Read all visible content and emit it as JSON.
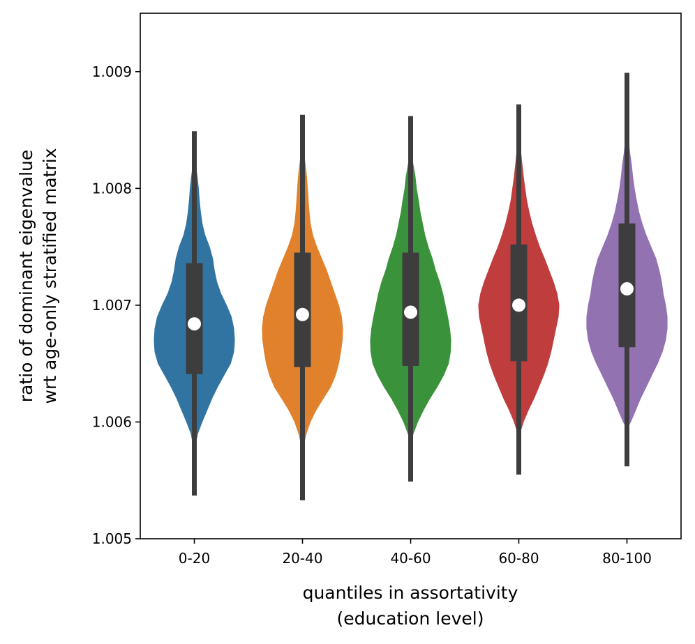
{
  "chart_data": {
    "type": "violin",
    "xlabel_line1": "quantiles in assortativity",
    "xlabel_line2": "(education level)",
    "ylabel_line1": "ratio of dominant eigenvalue",
    "ylabel_line2": "wrt age-only stratified matrix",
    "ylim": [
      1.005,
      1.0095
    ],
    "yticks": [
      "1.005",
      "1.006",
      "1.007",
      "1.008",
      "1.009"
    ],
    "categories": [
      "0-20",
      "20-40",
      "40-60",
      "60-80",
      "80-100"
    ],
    "series": [
      {
        "color": "#3274a1",
        "median": 1.00684,
        "q1": 1.00641,
        "q3": 1.00736,
        "whisker_low": 1.00537,
        "whisker_high": 1.00849,
        "kde_min": 1.00578,
        "kde_max": 1.00823,
        "density": [
          [
            1.00578,
            0.02
          ],
          [
            1.0059,
            0.09
          ],
          [
            1.006,
            0.2
          ],
          [
            1.0061,
            0.32
          ],
          [
            1.0062,
            0.44
          ],
          [
            1.0063,
            0.58
          ],
          [
            1.0064,
            0.74
          ],
          [
            1.0065,
            0.9
          ],
          [
            1.0066,
            0.98
          ],
          [
            1.0067,
            1.0
          ],
          [
            1.0068,
            0.98
          ],
          [
            1.0069,
            0.92
          ],
          [
            1.007,
            0.8
          ],
          [
            1.0071,
            0.66
          ],
          [
            1.0072,
            0.56
          ],
          [
            1.0073,
            0.5
          ],
          [
            1.0074,
            0.46
          ],
          [
            1.0075,
            0.38
          ],
          [
            1.0076,
            0.27
          ],
          [
            1.0077,
            0.2
          ],
          [
            1.0078,
            0.16
          ],
          [
            1.0079,
            0.13
          ],
          [
            1.008,
            0.11
          ],
          [
            1.0081,
            0.08
          ],
          [
            1.0082,
            0.04
          ],
          [
            1.00823,
            0.01
          ]
        ]
      },
      {
        "color": "#e1812c",
        "median": 1.00692,
        "q1": 1.00647,
        "q3": 1.00745,
        "whisker_low": 1.00533,
        "whisker_high": 1.00863,
        "kde_min": 1.00578,
        "kde_max": 1.00842,
        "density": [
          [
            1.00578,
            0.02
          ],
          [
            1.0059,
            0.1
          ],
          [
            1.006,
            0.2
          ],
          [
            1.0061,
            0.34
          ],
          [
            1.0062,
            0.52
          ],
          [
            1.0063,
            0.7
          ],
          [
            1.0064,
            0.82
          ],
          [
            1.0065,
            0.9
          ],
          [
            1.0066,
            0.95
          ],
          [
            1.0067,
            0.99
          ],
          [
            1.0068,
            1.0
          ],
          [
            1.0069,
            0.97
          ],
          [
            1.007,
            0.9
          ],
          [
            1.0071,
            0.8
          ],
          [
            1.0072,
            0.7
          ],
          [
            1.0073,
            0.6
          ],
          [
            1.0074,
            0.48
          ],
          [
            1.0075,
            0.36
          ],
          [
            1.0076,
            0.26
          ],
          [
            1.0077,
            0.2
          ],
          [
            1.0078,
            0.17
          ],
          [
            1.0079,
            0.15
          ],
          [
            1.008,
            0.13
          ],
          [
            1.0081,
            0.11
          ],
          [
            1.0082,
            0.08
          ],
          [
            1.0083,
            0.04
          ],
          [
            1.00842,
            0.01
          ]
        ]
      },
      {
        "color": "#3a923a",
        "median": 1.00694,
        "q1": 1.00648,
        "q3": 1.00745,
        "whisker_low": 1.00549,
        "whisker_high": 1.00862,
        "kde_min": 1.00582,
        "kde_max": 1.00829,
        "density": [
          [
            1.00582,
            0.02
          ],
          [
            1.0059,
            0.07
          ],
          [
            1.006,
            0.18
          ],
          [
            1.0061,
            0.32
          ],
          [
            1.0062,
            0.48
          ],
          [
            1.0063,
            0.66
          ],
          [
            1.0064,
            0.82
          ],
          [
            1.0065,
            0.94
          ],
          [
            1.0066,
            0.99
          ],
          [
            1.0067,
            1.0
          ],
          [
            1.0068,
            0.97
          ],
          [
            1.0069,
            0.92
          ],
          [
            1.007,
            0.86
          ],
          [
            1.0071,
            0.8
          ],
          [
            1.0072,
            0.72
          ],
          [
            1.0073,
            0.62
          ],
          [
            1.0074,
            0.54
          ],
          [
            1.0075,
            0.44
          ],
          [
            1.0076,
            0.36
          ],
          [
            1.0077,
            0.3
          ],
          [
            1.0078,
            0.24
          ],
          [
            1.0079,
            0.2
          ],
          [
            1.008,
            0.15
          ],
          [
            1.0081,
            0.12
          ],
          [
            1.0082,
            0.07
          ],
          [
            1.00829,
            0.02
          ]
        ]
      },
      {
        "color": "#c03d3e",
        "median": 1.007,
        "q1": 1.00652,
        "q3": 1.00752,
        "whisker_low": 1.00555,
        "whisker_high": 1.00872,
        "kde_min": 1.00589,
        "kde_max": 1.00847,
        "density": [
          [
            1.00589,
            0.02
          ],
          [
            1.006,
            0.12
          ],
          [
            1.0061,
            0.24
          ],
          [
            1.0062,
            0.38
          ],
          [
            1.0063,
            0.5
          ],
          [
            1.0064,
            0.62
          ],
          [
            1.0065,
            0.72
          ],
          [
            1.0066,
            0.8
          ],
          [
            1.0067,
            0.86
          ],
          [
            1.0068,
            0.92
          ],
          [
            1.0069,
            0.98
          ],
          [
            1.007,
            1.0
          ],
          [
            1.0071,
            0.95
          ],
          [
            1.0072,
            0.86
          ],
          [
            1.0073,
            0.75
          ],
          [
            1.0074,
            0.64
          ],
          [
            1.0075,
            0.52
          ],
          [
            1.0076,
            0.42
          ],
          [
            1.0077,
            0.33
          ],
          [
            1.0078,
            0.26
          ],
          [
            1.0079,
            0.2
          ],
          [
            1.008,
            0.16
          ],
          [
            1.0081,
            0.12
          ],
          [
            1.0082,
            0.09
          ],
          [
            1.0083,
            0.06
          ],
          [
            1.0084,
            0.03
          ],
          [
            1.00847,
            0.01
          ]
        ]
      },
      {
        "color": "#9372b2",
        "median": 1.00714,
        "q1": 1.00664,
        "q3": 1.0077,
        "whisker_low": 1.00562,
        "whisker_high": 1.00899,
        "kde_min": 1.00595,
        "kde_max": 1.00857,
        "density": [
          [
            1.00595,
            0.02
          ],
          [
            1.006,
            0.1
          ],
          [
            1.0061,
            0.22
          ],
          [
            1.0062,
            0.34
          ],
          [
            1.0063,
            0.48
          ],
          [
            1.0064,
            0.62
          ],
          [
            1.0065,
            0.76
          ],
          [
            1.0066,
            0.88
          ],
          [
            1.0067,
            0.96
          ],
          [
            1.0068,
            1.0
          ],
          [
            1.0069,
            1.0
          ],
          [
            1.007,
            0.96
          ],
          [
            1.0071,
            0.9
          ],
          [
            1.0072,
            0.86
          ],
          [
            1.0073,
            0.8
          ],
          [
            1.0074,
            0.72
          ],
          [
            1.0075,
            0.6
          ],
          [
            1.0076,
            0.48
          ],
          [
            1.0077,
            0.38
          ],
          [
            1.0078,
            0.3
          ],
          [
            1.0079,
            0.24
          ],
          [
            1.008,
            0.19
          ],
          [
            1.0081,
            0.15
          ],
          [
            1.0082,
            0.12
          ],
          [
            1.0083,
            0.08
          ],
          [
            1.0084,
            0.05
          ],
          [
            1.0085,
            0.02
          ],
          [
            1.00857,
            0.01
          ]
        ]
      }
    ],
    "box_color": "#3d3d3d",
    "median_color": "#ffffff"
  }
}
